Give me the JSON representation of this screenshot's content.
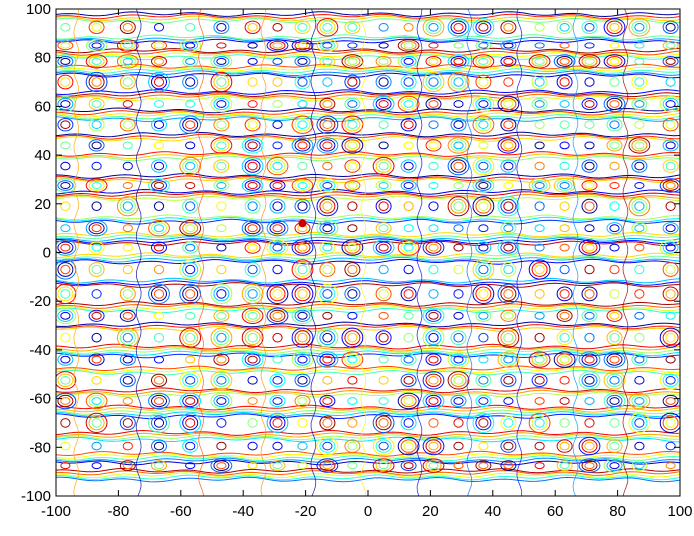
{
  "chart_data": {
    "type": "contour",
    "title": "",
    "xlabel": "",
    "ylabel": "",
    "xlim": [
      -100,
      100
    ],
    "ylim": [
      -100,
      100
    ],
    "grid": false,
    "legend": "none",
    "colormap": "jet",
    "x_ticks": [
      -100,
      -80,
      -60,
      -40,
      -20,
      0,
      20,
      40,
      60,
      80,
      100
    ],
    "y_ticks": [
      -100,
      -80,
      -60,
      -40,
      -20,
      0,
      20,
      40,
      60,
      80,
      100
    ],
    "x_tick_labels": [
      "-100",
      "-80",
      "-60",
      "-40",
      "-20",
      "0",
      "20",
      "40",
      "60",
      "80",
      "100"
    ],
    "y_tick_labels": [
      "-100",
      "-80",
      "-60",
      "-40",
      "-20",
      "0",
      "20",
      "40",
      "60",
      "80",
      "100"
    ],
    "marker": {
      "x": -21,
      "y": 12,
      "color": "#cc0000"
    },
    "horizontal_bands_y": [
      97,
      88,
      82,
      75,
      65,
      57,
      48,
      40,
      31,
      24,
      14,
      6,
      -2,
      -12,
      -22,
      -30,
      -40,
      -48,
      -57,
      -65,
      -75,
      -84,
      -91
    ],
    "column_centers_x": [
      -97,
      -87,
      -77,
      -67,
      -57,
      -47,
      -37,
      -29,
      -21,
      -13,
      -5,
      5,
      13,
      21,
      29,
      37,
      45,
      55,
      63,
      71,
      79,
      87,
      97
    ]
  },
  "colors": {
    "axes": "#000000",
    "background": "#ffffff",
    "jet_low": "#0000ff",
    "jet_mid": "#00ffff",
    "jet_mid2": "#ffff00",
    "jet_high": "#ff0000"
  }
}
